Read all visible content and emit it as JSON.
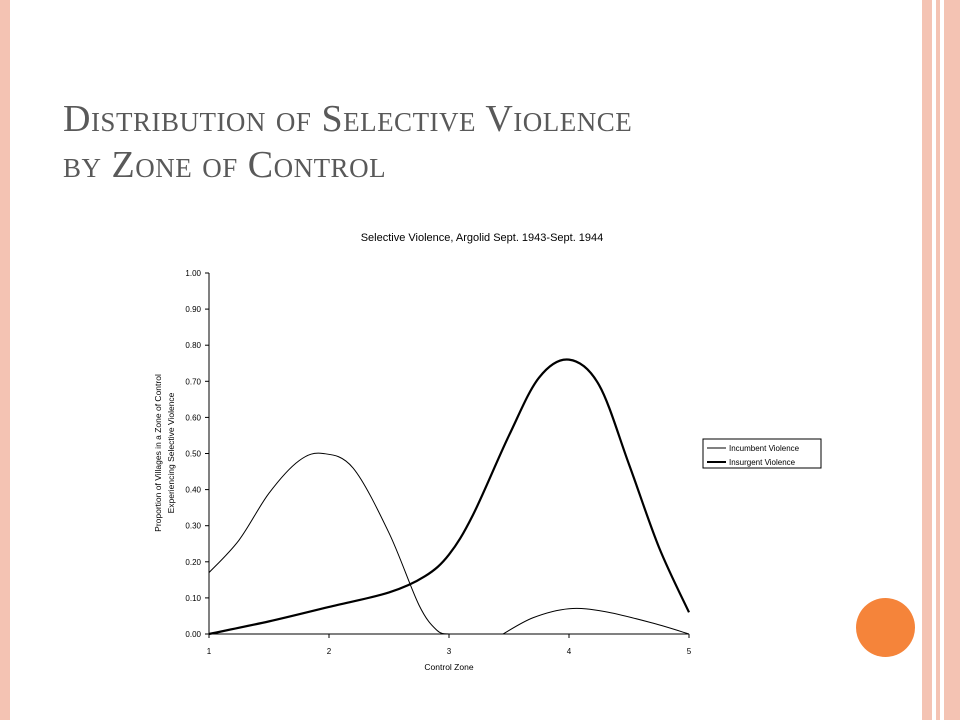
{
  "slide": {
    "title_line1": "Distribution of Selective Violence",
    "title_line2": "by Zone of Control"
  },
  "colors": {
    "frame": "#f4c3b3",
    "dot": "#f5843a",
    "title": "#595959"
  },
  "chart_data": {
    "type": "line",
    "title": "Selective Violence, Argolid Sept. 1943-Sept. 1944",
    "xlabel": "Control Zone",
    "ylabel_line1": "Proportion of Villages in a Zone of Control",
    "ylabel_line2": "Experiencing Selective Violence",
    "xlim": [
      1,
      5
    ],
    "ylim": [
      0,
      1
    ],
    "x_ticks": [
      1,
      2,
      3,
      4,
      5
    ],
    "y_ticks": [
      0,
      0.1,
      0.2,
      0.3,
      0.4,
      0.5,
      0.6,
      0.7,
      0.8,
      0.9,
      1.0
    ],
    "x_tick_labels": [
      "1",
      "2",
      "3",
      "4",
      "5"
    ],
    "y_tick_labels": [
      "0.00",
      "0.10",
      "0.20",
      "0.30",
      "0.40",
      "0.50",
      "0.60",
      "0.70",
      "0.80",
      "0.90",
      "1.00"
    ],
    "grid": false,
    "legend_position": "right",
    "series": [
      {
        "name": "Incumbent Violence",
        "stroke": "#000000",
        "weight": "thin",
        "x": [
          1.0,
          1.25,
          1.5,
          1.75,
          1.95,
          2.2,
          2.5,
          2.75,
          2.9,
          3.0
        ],
        "y": [
          0.17,
          0.26,
          0.39,
          0.48,
          0.5,
          0.46,
          0.28,
          0.08,
          0.01,
          0.0
        ],
        "segment2_x": [
          3.45,
          3.7,
          4.0,
          4.3,
          4.7,
          5.0
        ],
        "segment2_y": [
          0.0,
          0.045,
          0.07,
          0.062,
          0.03,
          0.0
        ]
      },
      {
        "name": "Insurgent Violence",
        "stroke": "#000000",
        "weight": "thick",
        "x": [
          1.0,
          1.5,
          2.0,
          2.5,
          2.8,
          3.0,
          3.2,
          3.5,
          3.75,
          4.0,
          4.25,
          4.5,
          4.75,
          5.0
        ],
        "y": [
          0.0,
          0.035,
          0.075,
          0.115,
          0.16,
          0.22,
          0.33,
          0.55,
          0.71,
          0.76,
          0.69,
          0.47,
          0.24,
          0.06
        ]
      }
    ]
  }
}
